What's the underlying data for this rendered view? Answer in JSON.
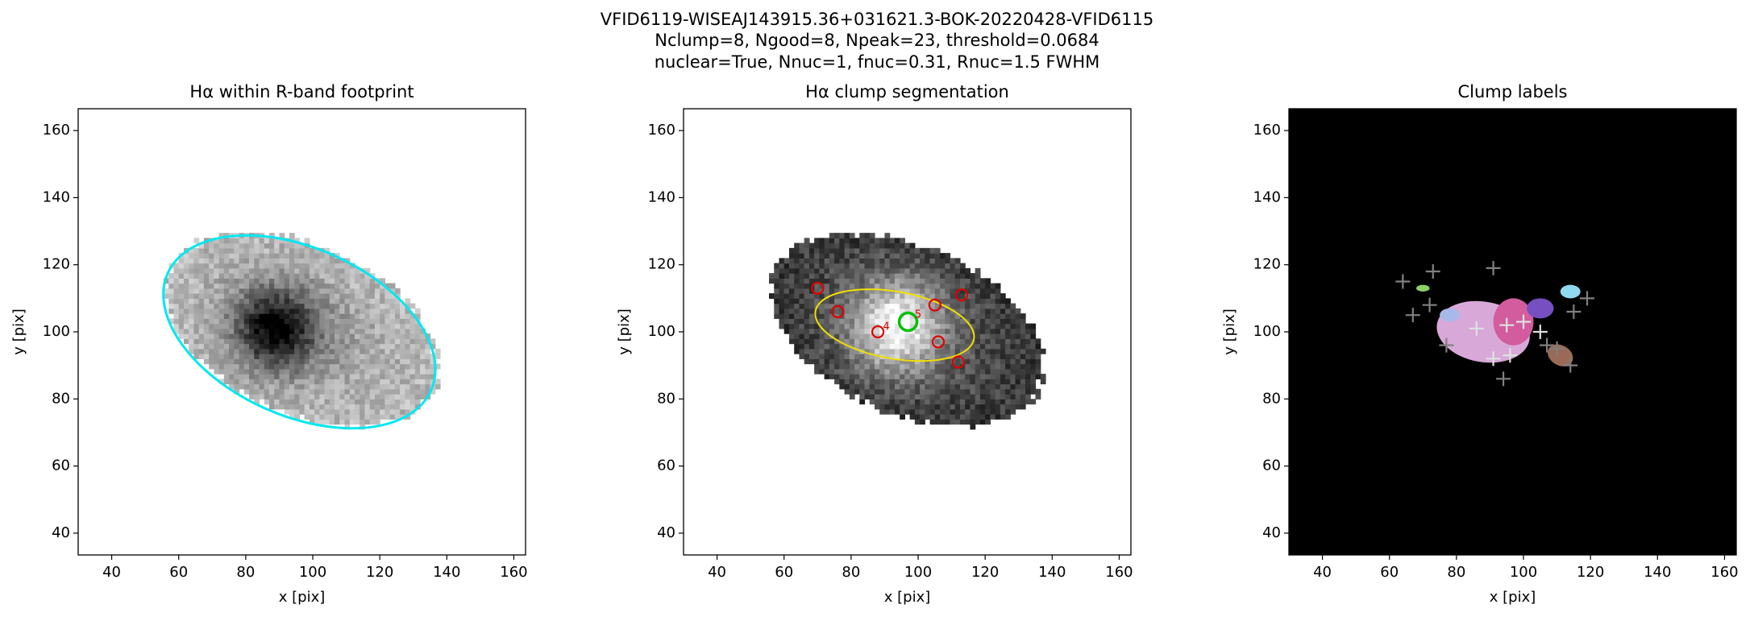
{
  "suptitle": [
    "VFID6119-WISEAJ143915.36+031621.3-BOK-20220428-VFID6115",
    "Nclump=8, Ngood=8, Npeak=23, threshold=0.0684",
    "nuclear=True, Nnuc=1, fnuc=0.31, Rnuc=1.5 FWHM"
  ],
  "chart_data": [
    {
      "type": "image",
      "title": "Hα within R-band footprint",
      "xlabel": "x [pix]",
      "ylabel": "y [pix]",
      "xlim": [
        30,
        163.5
      ],
      "ylim": [
        33.5,
        166.5
      ],
      "xticks": [
        40,
        60,
        80,
        100,
        120,
        140,
        160
      ],
      "yticks": [
        40,
        60,
        80,
        100,
        120,
        140,
        160
      ],
      "regions": [
        {
          "cx": 96,
          "cy": 100,
          "rx": 43,
          "ry": 25,
          "angle": -24,
          "colormap": "gray_r",
          "core": [
            88,
            100
          ],
          "outline": "#00e8f0"
        }
      ]
    },
    {
      "type": "image",
      "title": "Hα clump segmentation",
      "xlabel": "x [pix]",
      "ylabel": "y [pix]",
      "xlim": [
        30,
        163.5
      ],
      "ylim": [
        33.5,
        166.5
      ],
      "xticks": [
        40,
        60,
        80,
        100,
        120,
        140,
        160
      ],
      "yticks": [
        40,
        60,
        80,
        100,
        120,
        140,
        160
      ],
      "regions": [
        {
          "cx": 96,
          "cy": 100,
          "rx": 43,
          "ry": 25,
          "angle": -24,
          "colormap": "gray",
          "core": [
            93,
            101
          ]
        }
      ],
      "contours": [
        {
          "cx": 93,
          "cy": 102,
          "rx": 24,
          "ry": 10,
          "angle": -10,
          "color": "#f0e000"
        }
      ],
      "points": [
        {
          "marker": "circle",
          "color": "#e00000",
          "x": [
            70,
            76,
            88,
            105,
            106,
            112,
            113
          ],
          "y": [
            113,
            106,
            100,
            108,
            97,
            91,
            111
          ]
        },
        {
          "marker": "circle",
          "color": "#00c000",
          "x": [
            97
          ],
          "y": [
            103
          ]
        }
      ],
      "annotations": [
        {
          "text": "4",
          "x": 89.5,
          "y": 101.5,
          "color": "#e00000"
        },
        {
          "text": "5",
          "x": 99,
          "y": 105,
          "color": "#e00000"
        }
      ]
    },
    {
      "type": "image",
      "title": "Clump labels",
      "xlabel": "x [pix]",
      "ylabel": "y [pix]",
      "xlim": [
        30,
        163.5
      ],
      "ylim": [
        33.5,
        166.5
      ],
      "xticks": [
        40,
        60,
        80,
        100,
        120,
        140,
        160
      ],
      "yticks": [
        40,
        60,
        80,
        100,
        120,
        140,
        160
      ],
      "background": "#000000",
      "regions": [
        {
          "cx": 88,
          "cy": 100,
          "rx": 14,
          "ry": 9,
          "angle": -10,
          "color": "#d8a8d8"
        },
        {
          "cx": 97,
          "cy": 103,
          "rx": 6,
          "ry": 7,
          "angle": 0,
          "color": "#d25c9e"
        },
        {
          "cx": 105,
          "cy": 107,
          "rx": 4,
          "ry": 3,
          "angle": 0,
          "color": "#7650c0"
        },
        {
          "cx": 114,
          "cy": 112,
          "rx": 3,
          "ry": 2,
          "angle": 0,
          "color": "#90d8f0"
        },
        {
          "cx": 111,
          "cy": 93,
          "rx": 4,
          "ry": 3,
          "angle": -30,
          "color": "#9a6a58"
        },
        {
          "cx": 70,
          "cy": 113,
          "rx": 2,
          "ry": 1,
          "angle": 0,
          "color": "#8ecf68"
        },
        {
          "cx": 78,
          "cy": 105,
          "rx": 3,
          "ry": 2,
          "angle": 0,
          "color": "#a8b8e8"
        }
      ],
      "points": [
        {
          "marker": "plus",
          "color": "#808080",
          "x": [
            64,
            73,
            91,
            72,
            67,
            77,
            94,
            119,
            114,
            110,
            115,
            107
          ],
          "y": [
            115,
            118,
            119,
            108,
            105,
            96,
            86,
            110,
            90,
            95,
            106,
            96
          ]
        },
        {
          "marker": "plus",
          "color": "#e0e0e0",
          "x": [
            86,
            95,
            100,
            91,
            96,
            105
          ],
          "y": [
            101,
            102,
            103,
            92,
            93,
            100
          ]
        }
      ]
    }
  ]
}
